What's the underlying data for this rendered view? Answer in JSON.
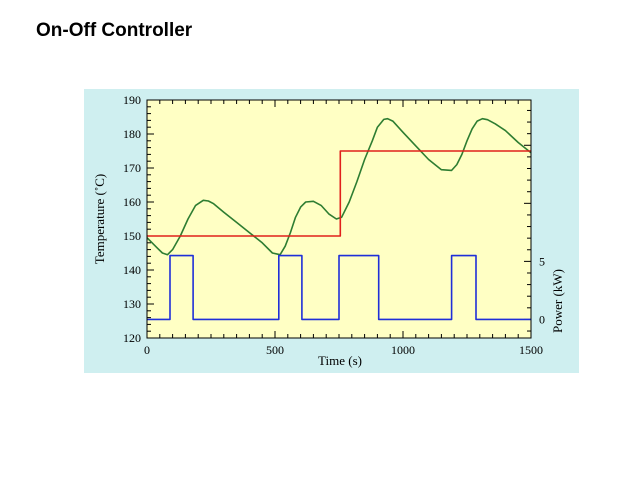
{
  "page": {
    "title": "On-Off Controller"
  },
  "colors": {
    "figure_bg": "#cfeff0",
    "plot_bg": "#ffffc4",
    "temperature": "#2e7d32",
    "setpoint": "#e0201b",
    "power": "#1f2fd8"
  },
  "chart_data": {
    "type": "line",
    "xlabel": "Time (s)",
    "ylabel": "Temperature (˚C)",
    "y2label": "Power (kW)",
    "xlim": [
      0,
      1500
    ],
    "ylim": [
      120,
      190
    ],
    "y2lim": [
      -1.6,
      18.9
    ],
    "x_ticks": [
      "0",
      "500",
      "1000",
      "1500"
    ],
    "y_ticks": [
      "120",
      "130",
      "140",
      "150",
      "160",
      "170",
      "180",
      "190"
    ],
    "y2_ticks": [
      "0",
      "5"
    ],
    "grid": false,
    "series": [
      {
        "key": "temperature",
        "axis": "left",
        "x": [
          0,
          40,
          60,
          80,
          100,
          130,
          160,
          190,
          220,
          240,
          260,
          300,
          350,
          400,
          450,
          490,
          520,
          540,
          560,
          580,
          600,
          620,
          650,
          680,
          710,
          740,
          760,
          790,
          820,
          850,
          880,
          900,
          925,
          940,
          960,
          1000,
          1050,
          1100,
          1150,
          1190,
          1210,
          1230,
          1250,
          1270,
          1290,
          1310,
          1330,
          1360,
          1400,
          1450,
          1500
        ],
        "y": [
          149.5,
          146.5,
          145,
          144.5,
          146,
          150,
          155,
          159,
          160.5,
          160.3,
          159.5,
          157,
          154,
          151,
          148,
          145,
          144.5,
          147,
          151,
          155.5,
          158.5,
          160,
          160.2,
          159,
          156.5,
          155,
          155.5,
          160,
          166,
          172.5,
          178,
          182,
          184.3,
          184.5,
          183.8,
          180.5,
          176.5,
          172.5,
          169.5,
          169.3,
          171,
          174,
          178,
          181.5,
          183.8,
          184.5,
          184.2,
          183,
          181,
          177.5,
          174.5
        ]
      },
      {
        "key": "setpoint",
        "axis": "left",
        "x": [
          0,
          755,
          755,
          1500
        ],
        "y": [
          150,
          150,
          175,
          175
        ]
      },
      {
        "key": "power",
        "axis": "right",
        "x": [
          0,
          90,
          90,
          180,
          180,
          515,
          515,
          605,
          605,
          750,
          750,
          905,
          905,
          1190,
          1190,
          1285,
          1285,
          1500
        ],
        "y": [
          0,
          0,
          5.5,
          5.5,
          0,
          0,
          5.5,
          5.5,
          0,
          0,
          5.5,
          5.5,
          0,
          0,
          5.5,
          5.5,
          0,
          0
        ]
      }
    ]
  }
}
